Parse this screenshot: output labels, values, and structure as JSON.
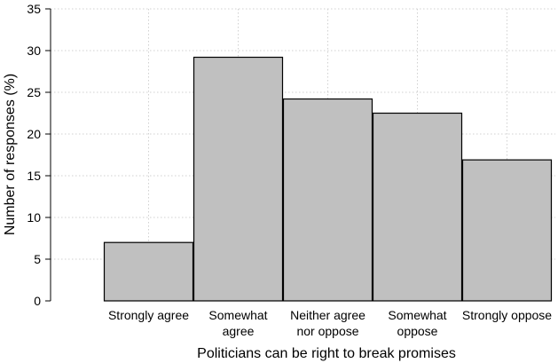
{
  "chart_data": {
    "type": "bar",
    "title": "",
    "xlabel": "Politicians can be right to break promises",
    "ylabel": "Number of responses (%)",
    "ylim": [
      0,
      35
    ],
    "yticks": [
      0,
      5,
      10,
      15,
      20,
      25,
      30,
      35
    ],
    "grid": true,
    "categories": [
      [
        "Strongly agree"
      ],
      [
        "Somewhat",
        "agree"
      ],
      [
        "Neither agree",
        "nor oppose"
      ],
      [
        "Somewhat",
        "oppose"
      ],
      [
        "Strongly oppose"
      ]
    ],
    "values": [
      7.0,
      29.2,
      24.2,
      22.5,
      16.9
    ],
    "colors": {
      "bar": "#c0c0c0",
      "bar_edge": "#000000",
      "grid": "#d0d0d0"
    }
  }
}
